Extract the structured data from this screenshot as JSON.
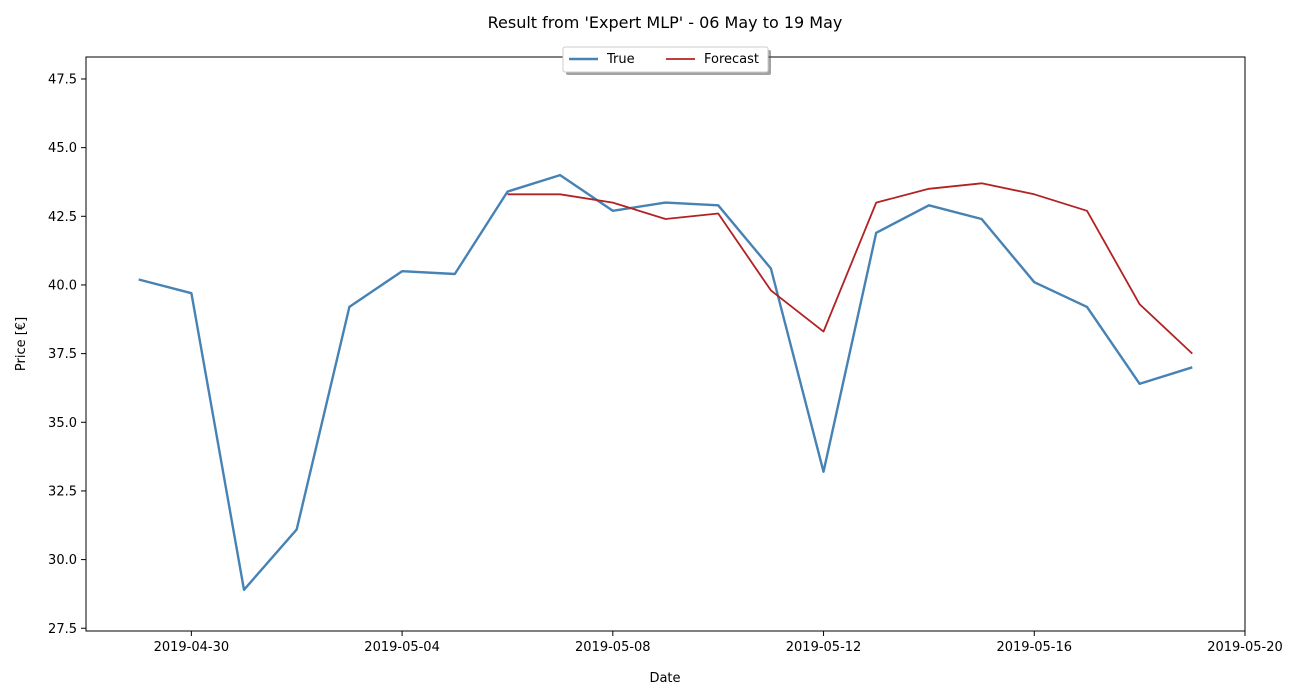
{
  "chart_data": {
    "type": "line",
    "title": "Result from 'Expert MLP' - 06 May to 19 May",
    "xlabel": "Date",
    "ylabel": "Price [€]",
    "xlim": [
      "2019-04-28",
      "2019-05-20"
    ],
    "ylim": [
      27.4,
      48.3
    ],
    "x_ticks": [
      "2019-04-30",
      "2019-05-04",
      "2019-05-08",
      "2019-05-12",
      "2019-05-16",
      "2019-05-20"
    ],
    "y_ticks": [
      27.5,
      30.0,
      32.5,
      35.0,
      37.5,
      40.0,
      42.5,
      45.0,
      47.5
    ],
    "y_tick_labels": [
      "27.5",
      "30.0",
      "32.5",
      "35.0",
      "37.5",
      "40.0",
      "42.5",
      "45.0",
      "47.5"
    ],
    "grid": false,
    "legend": {
      "position": "top-center",
      "entries": [
        "True",
        "Forecast"
      ]
    },
    "series": [
      {
        "name": "True",
        "color": "#4682b4",
        "x": [
          "2019-04-29",
          "2019-04-30",
          "2019-05-01",
          "2019-05-02",
          "2019-05-03",
          "2019-05-04",
          "2019-05-05",
          "2019-05-06",
          "2019-05-07",
          "2019-05-08",
          "2019-05-09",
          "2019-05-10",
          "2019-05-11",
          "2019-05-12",
          "2019-05-13",
          "2019-05-14",
          "2019-05-15",
          "2019-05-16",
          "2019-05-17",
          "2019-05-18",
          "2019-05-19"
        ],
        "values": [
          40.2,
          39.7,
          28.9,
          31.1,
          39.2,
          40.5,
          40.4,
          43.4,
          44.0,
          42.7,
          43.0,
          42.9,
          40.6,
          33.2,
          41.9,
          42.9,
          42.4,
          40.1,
          39.2,
          36.4,
          37.0
        ]
      },
      {
        "name": "Forecast",
        "color": "#b22222",
        "x": [
          "2019-05-06",
          "2019-05-07",
          "2019-05-08",
          "2019-05-09",
          "2019-05-10",
          "2019-05-11",
          "2019-05-12",
          "2019-05-13",
          "2019-05-14",
          "2019-05-15",
          "2019-05-16",
          "2019-05-17",
          "2019-05-18",
          "2019-05-19"
        ],
        "values": [
          43.3,
          43.3,
          43.0,
          42.4,
          42.6,
          39.8,
          38.3,
          43.0,
          43.5,
          43.7,
          43.3,
          42.7,
          39.3,
          37.5
        ]
      }
    ]
  }
}
